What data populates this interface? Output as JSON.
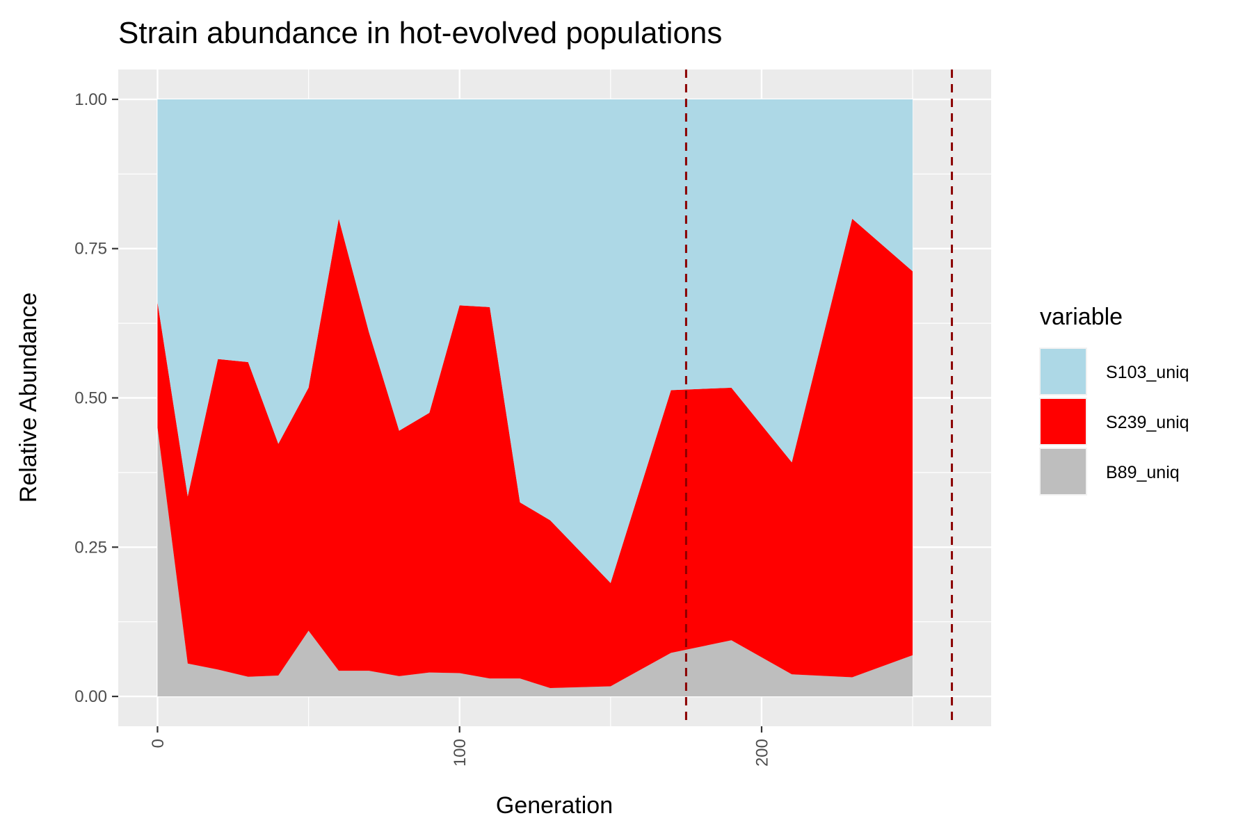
{
  "chart_data": {
    "type": "area",
    "stacked": true,
    "title": "Strain abundance in hot-evolved populations",
    "xlabel": "Generation",
    "ylabel": "Relative Abundance",
    "xlim": [
      -13,
      276
    ],
    "ylim": [
      -0.05,
      1.05
    ],
    "x_ticks": [
      0,
      100,
      200
    ],
    "x_tick_labels": [
      "0",
      "100",
      "200"
    ],
    "y_ticks": [
      0,
      0.25,
      0.5,
      0.75,
      1.0
    ],
    "y_tick_labels": [
      "0.00",
      "0.25",
      "0.50",
      "0.75",
      "1.00"
    ],
    "grid": true,
    "legend_title": "variable",
    "legend_position": "right",
    "x": [
      0,
      10,
      20,
      30,
      40,
      50,
      60,
      70,
      80,
      90,
      100,
      110,
      120,
      130,
      150,
      170,
      190,
      210,
      230,
      250
    ],
    "series": [
      {
        "name": "S103_uniq",
        "color": "#add8e6",
        "values": [
          0.34,
          0.665,
          0.435,
          0.44,
          0.577,
          0.483,
          0.2,
          0.39,
          0.555,
          0.525,
          0.345,
          0.348,
          0.675,
          0.705,
          0.81,
          0.487,
          0.483,
          0.608,
          0.2,
          0.288
        ]
      },
      {
        "name": "S239_uniq",
        "color": "#ff0000",
        "values": [
          0.21,
          0.28,
          0.52,
          0.527,
          0.388,
          0.407,
          0.757,
          0.567,
          0.411,
          0.435,
          0.616,
          0.622,
          0.295,
          0.281,
          0.173,
          0.44,
          0.423,
          0.355,
          0.768,
          0.643
        ]
      },
      {
        "name": "B89_uniq",
        "color": "#bebebe",
        "values": [
          0.45,
          0.055,
          0.045,
          0.033,
          0.035,
          0.11,
          0.043,
          0.043,
          0.034,
          0.04,
          0.039,
          0.03,
          0.03,
          0.014,
          0.017,
          0.073,
          0.094,
          0.037,
          0.032,
          0.069
        ]
      }
    ],
    "vlines": [
      {
        "x": 175,
        "color": "#8b0000",
        "style": "dashed"
      },
      {
        "x": 263,
        "color": "#8b0000",
        "style": "dashed"
      }
    ]
  }
}
